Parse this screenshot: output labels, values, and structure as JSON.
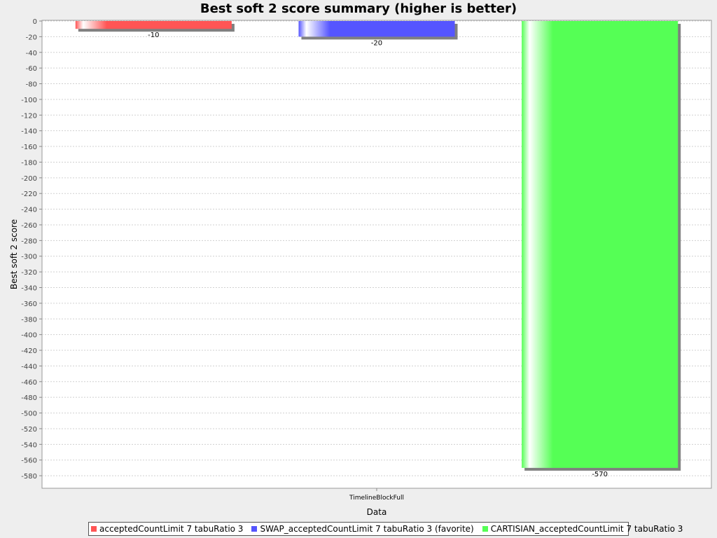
{
  "chart_data": {
    "type": "bar",
    "title": "Best soft 2 score summary (higher is better)",
    "xlabel": "Data",
    "ylabel": "Best soft 2 score",
    "categories": [
      "TimelineBlockFull"
    ],
    "series": [
      {
        "name": "acceptedCountLimit 7 tabuRatio 3",
        "values": [
          -10
        ],
        "color": "#ff5555"
      },
      {
        "name": "SWAP_acceptedCountLimit 7 tabuRatio 3 (favorite)",
        "values": [
          -20
        ],
        "color": "#5555ff"
      },
      {
        "name": "CARTISIAN_acceptedCountLimit 7 tabuRatio 3",
        "values": [
          -570
        ],
        "color": "#55ff55"
      }
    ],
    "data_labels": [
      "-10",
      "-20",
      "-570"
    ],
    "ylim": [
      -596,
      0
    ],
    "yticks": [
      0,
      -20,
      -40,
      -60,
      -80,
      -100,
      -120,
      -140,
      -160,
      -180,
      -200,
      -220,
      -240,
      -260,
      -280,
      -300,
      -320,
      -340,
      -360,
      -380,
      -400,
      -420,
      -440,
      -460,
      -480,
      -500,
      -520,
      -540,
      -560,
      -580
    ],
    "grid": true,
    "legend_position": "bottom"
  }
}
